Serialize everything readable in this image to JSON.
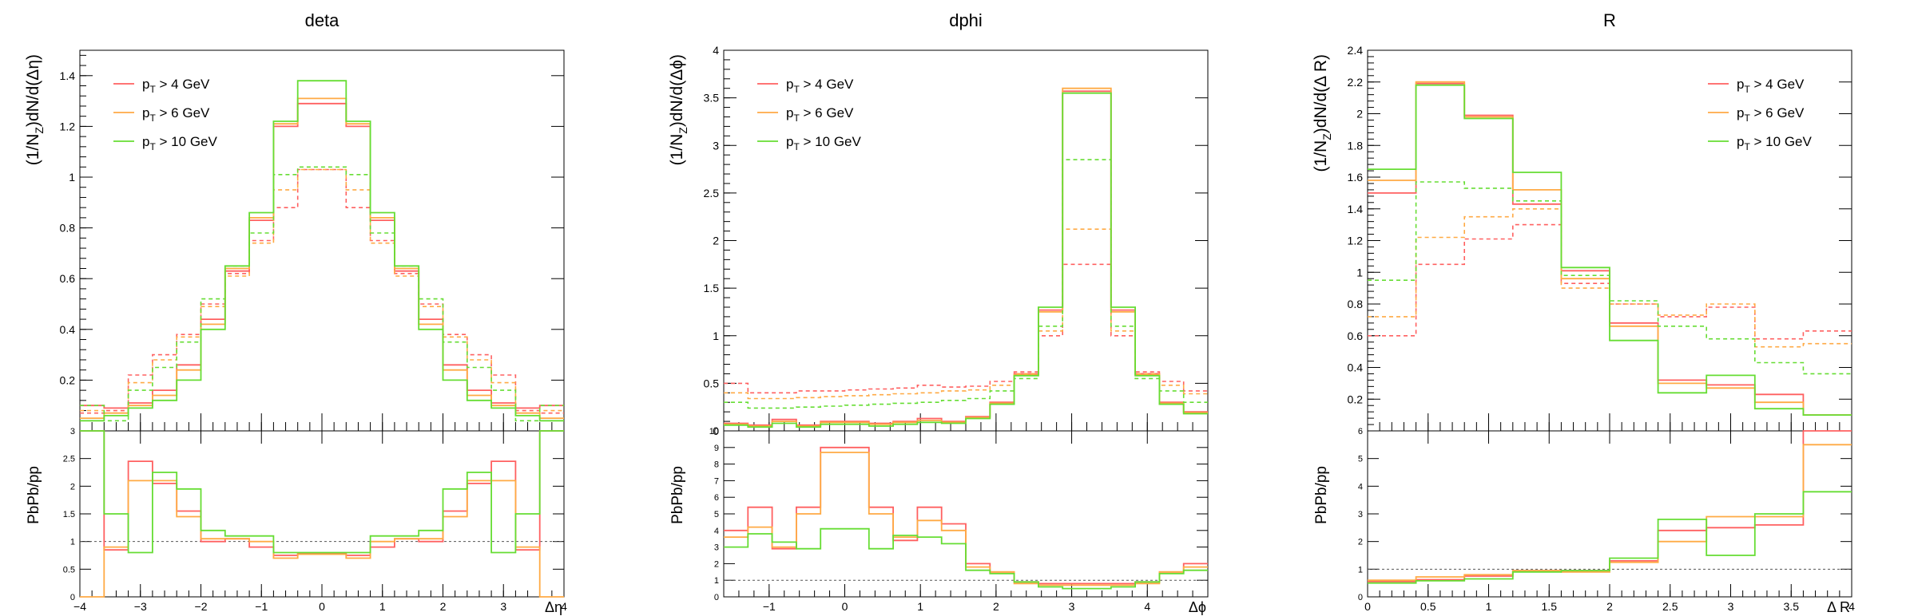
{
  "colors": {
    "pt4": "#ff6060",
    "pt6": "#ffaa44",
    "pt10": "#66dd33",
    "axis": "#000000",
    "ref": "#555555"
  },
  "chart_data": [
    {
      "type": "line",
      "title": "deta",
      "xlabel": "Δη",
      "ylabel": "(1/N_Z)dN/d(Δη)",
      "ratio_ylabel": "PbPb/pp",
      "xlim": [
        -4,
        4
      ],
      "ylim": [
        0,
        1.5
      ],
      "ratio_ylim": [
        0,
        3
      ],
      "xticks": [
        -4,
        -3,
        -2,
        -1,
        0,
        1,
        2,
        3,
        4
      ],
      "xtick_labels": [
        "−4",
        "−3",
        "−2",
        "−1",
        "0",
        "1",
        "2",
        "3",
        "4"
      ],
      "yticks": [
        0.2,
        0.4,
        0.6,
        0.8,
        1,
        1.2,
        1.4
      ],
      "ytick_labels": [
        "0.2",
        "0.4",
        "0.6",
        "0.8",
        "1",
        "1.2",
        "1.4"
      ],
      "ratio_yticks": [
        0,
        0.5,
        1,
        1.5,
        2,
        2.5,
        3
      ],
      "ratio_ytick_labels": [
        "0",
        "0.5",
        "1",
        "1.5",
        "2",
        "2.5",
        "3"
      ],
      "legend_pos": "top-left",
      "bin_edges": [
        -4.0,
        -3.6,
        -3.2,
        -2.8,
        -2.4,
        -2.0,
        -1.6,
        -1.2,
        -0.8,
        -0.4,
        0.0,
        0.4,
        0.8,
        1.2,
        1.6,
        2.0,
        2.4,
        2.8,
        3.2,
        3.6,
        4.0
      ],
      "series": [
        {
          "name": "p_T > 4 GeV",
          "name_main": "p",
          "name_sub": "T",
          "name_rest": " > 4 GeV",
          "color_key": "pt4",
          "pbpb": [
            0.1,
            0.09,
            0.11,
            0.16,
            0.26,
            0.44,
            0.63,
            0.83,
            1.2,
            1.29,
            1.29,
            1.2,
            0.83,
            0.63,
            0.44,
            0.26,
            0.16,
            0.11,
            0.09,
            0.1
          ],
          "pp": [
            0.07,
            0.08,
            0.22,
            0.3,
            0.38,
            0.5,
            0.62,
            0.75,
            0.88,
            1.03,
            1.03,
            0.88,
            0.75,
            0.62,
            0.5,
            0.38,
            0.3,
            0.22,
            0.08,
            0.07
          ],
          "ratio": [
            3.0,
            0.85,
            2.45,
            2.05,
            1.55,
            1.0,
            1.05,
            0.9,
            0.75,
            0.78,
            0.78,
            0.75,
            0.9,
            1.05,
            1.0,
            1.55,
            2.05,
            2.45,
            0.85,
            3.0
          ]
        },
        {
          "name": "p_T > 6 GeV",
          "name_main": "p",
          "name_sub": "T",
          "name_rest": " > 6 GeV",
          "color_key": "pt6",
          "pbpb": [
            0.05,
            0.07,
            0.1,
            0.14,
            0.24,
            0.42,
            0.64,
            0.84,
            1.21,
            1.31,
            1.31,
            1.21,
            0.84,
            0.64,
            0.42,
            0.24,
            0.14,
            0.1,
            0.07,
            0.05
          ],
          "pp": [
            0.08,
            0.07,
            0.19,
            0.28,
            0.37,
            0.49,
            0.61,
            0.74,
            0.95,
            1.03,
            1.03,
            0.95,
            0.74,
            0.61,
            0.49,
            0.37,
            0.28,
            0.19,
            0.07,
            0.08
          ],
          "ratio": [
            0.0,
            0.9,
            2.1,
            2.1,
            1.45,
            1.05,
            1.05,
            1.0,
            0.7,
            0.77,
            0.77,
            0.7,
            1.0,
            1.05,
            1.05,
            1.45,
            2.1,
            2.1,
            0.9,
            0.0
          ]
        },
        {
          "name": "p_T > 10 GeV",
          "name_main": "p",
          "name_sub": "T",
          "name_rest": " > 10 GeV",
          "color_key": "pt10",
          "pbpb": [
            0.04,
            0.06,
            0.09,
            0.12,
            0.2,
            0.4,
            0.65,
            0.86,
            1.22,
            1.38,
            1.38,
            1.22,
            0.86,
            0.65,
            0.4,
            0.2,
            0.12,
            0.09,
            0.06,
            0.04
          ],
          "pp": [
            0.1,
            0.04,
            0.16,
            0.25,
            0.35,
            0.52,
            0.65,
            0.78,
            1.01,
            1.04,
            1.04,
            1.01,
            0.78,
            0.65,
            0.52,
            0.35,
            0.25,
            0.16,
            0.04,
            0.1
          ],
          "ratio": [
            3.0,
            1.5,
            0.8,
            2.25,
            1.95,
            1.2,
            1.1,
            1.1,
            0.8,
            0.8,
            0.8,
            0.8,
            1.1,
            1.1,
            1.2,
            1.95,
            2.25,
            0.8,
            1.5,
            3.0
          ]
        }
      ]
    },
    {
      "type": "line",
      "title": "dphi",
      "xlabel": "Δϕ",
      "ylabel": "(1/N_Z)dN/d(Δϕ)",
      "ratio_ylabel": "PbPb/pp",
      "xlim": [
        -1.6,
        4.8
      ],
      "ylim": [
        0,
        4
      ],
      "ratio_ylim": [
        0,
        10
      ],
      "xticks": [
        -1,
        0,
        1,
        2,
        3,
        4
      ],
      "xtick_labels": [
        "−1",
        "0",
        "1",
        "2",
        "3",
        "4"
      ],
      "yticks": [
        0,
        0.5,
        1,
        1.5,
        2,
        2.5,
        3,
        3.5,
        4
      ],
      "ytick_labels": [
        "0",
        "0.5",
        "1",
        "1.5",
        "2",
        "2.5",
        "3",
        "3.5",
        "4"
      ],
      "ratio_yticks": [
        0,
        1,
        2,
        3,
        4,
        5,
        6,
        7,
        8,
        9,
        10
      ],
      "ratio_ytick_labels": [
        "0",
        "1",
        "2",
        "3",
        "4",
        "5",
        "6",
        "7",
        "8",
        "9",
        "10"
      ],
      "legend_pos": "top-left",
      "bin_edges": [
        -1.6,
        -1.28,
        -0.96,
        -0.64,
        -0.32,
        0.0,
        0.32,
        0.64,
        0.96,
        1.28,
        1.6,
        1.92,
        2.24,
        2.56,
        2.88,
        3.2,
        3.52,
        3.84,
        4.16,
        4.48,
        4.8
      ],
      "series": [
        {
          "name": "p_T > 4 GeV",
          "name_main": "p",
          "name_sub": "T",
          "name_rest": " > 4 GeV",
          "color_key": "pt4",
          "pbpb": [
            0.08,
            0.06,
            0.12,
            0.06,
            0.1,
            0.1,
            0.08,
            0.1,
            0.13,
            0.1,
            0.15,
            0.3,
            0.6,
            1.27,
            3.57,
            3.57,
            1.27,
            0.6,
            0.3,
            0.2
          ],
          "pp": [
            0.5,
            0.4,
            0.4,
            0.42,
            0.42,
            0.43,
            0.44,
            0.45,
            0.48,
            0.46,
            0.47,
            0.52,
            0.62,
            1.0,
            1.75,
            1.75,
            1.0,
            0.62,
            0.52,
            0.42
          ],
          "ratio": [
            4.0,
            5.4,
            2.9,
            5.4,
            9.0,
            9.0,
            5.4,
            3.4,
            5.4,
            4.4,
            2.0,
            1.5,
            0.9,
            0.8,
            0.8,
            0.8,
            0.8,
            0.9,
            1.5,
            2.0
          ]
        },
        {
          "name": "p_T > 6 GeV",
          "name_main": "p",
          "name_sub": "T",
          "name_rest": " > 6 GeV",
          "color_key": "pt6",
          "pbpb": [
            0.07,
            0.05,
            0.1,
            0.05,
            0.09,
            0.09,
            0.07,
            0.09,
            0.11,
            0.09,
            0.14,
            0.29,
            0.59,
            1.25,
            3.6,
            3.6,
            1.25,
            0.59,
            0.29,
            0.19
          ],
          "pp": [
            0.4,
            0.34,
            0.34,
            0.35,
            0.36,
            0.37,
            0.38,
            0.39,
            0.4,
            0.42,
            0.43,
            0.48,
            0.6,
            1.05,
            2.12,
            2.12,
            1.05,
            0.6,
            0.48,
            0.39
          ],
          "ratio": [
            3.6,
            4.2,
            3.0,
            5.0,
            8.7,
            8.7,
            5.0,
            3.6,
            4.6,
            4.0,
            1.8,
            1.5,
            0.8,
            0.7,
            0.7,
            0.7,
            0.7,
            0.8,
            1.5,
            1.8
          ]
        },
        {
          "name": "p_T > 10 GeV",
          "name_main": "p",
          "name_sub": "T",
          "name_rest": " > 10 GeV",
          "color_key": "pt10",
          "pbpb": [
            0.06,
            0.04,
            0.08,
            0.04,
            0.07,
            0.07,
            0.05,
            0.07,
            0.09,
            0.08,
            0.13,
            0.28,
            0.58,
            1.3,
            3.55,
            3.55,
            1.3,
            0.58,
            0.28,
            0.18
          ],
          "pp": [
            0.3,
            0.24,
            0.24,
            0.25,
            0.26,
            0.27,
            0.28,
            0.29,
            0.3,
            0.32,
            0.34,
            0.42,
            0.55,
            1.1,
            2.85,
            2.85,
            1.1,
            0.55,
            0.42,
            0.3
          ],
          "ratio": [
            3.0,
            3.8,
            3.3,
            2.9,
            4.1,
            4.1,
            2.9,
            3.7,
            3.6,
            3.2,
            1.6,
            1.4,
            0.9,
            0.6,
            0.5,
            0.5,
            0.6,
            0.9,
            1.4,
            1.6
          ]
        }
      ]
    },
    {
      "type": "line",
      "title": "R",
      "xlabel": "Δ R",
      "ylabel": "(1/N_Z)dN/d(Δ R)",
      "ratio_ylabel": "PbPb/pp",
      "xlim": [
        0,
        4
      ],
      "ylim": [
        0,
        2.4
      ],
      "ratio_ylim": [
        0,
        6
      ],
      "xticks": [
        0,
        0.5,
        1,
        1.5,
        2,
        2.5,
        3,
        3.5,
        4
      ],
      "xtick_labels": [
        "0",
        "0.5",
        "1",
        "1.5",
        "2",
        "2.5",
        "3",
        "3.5",
        "4"
      ],
      "yticks": [
        0.2,
        0.4,
        0.6,
        0.8,
        1,
        1.2,
        1.4,
        1.6,
        1.8,
        2,
        2.2,
        2.4
      ],
      "ytick_labels": [
        "0.2",
        "0.4",
        "0.6",
        "0.8",
        "1",
        "1.2",
        "1.4",
        "1.6",
        "1.8",
        "2",
        "2.2",
        "2.4"
      ],
      "ratio_yticks": [
        0,
        1,
        2,
        3,
        4,
        5,
        6
      ],
      "ratio_ytick_labels": [
        "0",
        "1",
        "2",
        "3",
        "4",
        "5",
        "6"
      ],
      "legend_pos": "top-right",
      "bin_edges": [
        0.0,
        0.4,
        0.8,
        1.2,
        1.6,
        2.0,
        2.4,
        2.8,
        3.2,
        3.6,
        4.0
      ],
      "series": [
        {
          "name": "p_T > 4 GeV",
          "name_main": "p",
          "name_sub": "T",
          "name_rest": " > 4 GeV",
          "color_key": "pt4",
          "pbpb": [
            1.5,
            2.19,
            1.99,
            1.43,
            1.01,
            0.68,
            0.32,
            0.29,
            0.23,
            0.1
          ],
          "pp": [
            0.6,
            1.05,
            1.21,
            1.3,
            0.93,
            0.8,
            0.72,
            0.78,
            0.58,
            0.63
          ],
          "ratio": [
            0.55,
            0.62,
            0.75,
            0.95,
            0.95,
            1.3,
            2.4,
            2.5,
            2.6,
            6.0
          ]
        },
        {
          "name": "p_T > 6 GeV",
          "name_main": "p",
          "name_sub": "T",
          "name_rest": " > 6 GeV",
          "color_key": "pt6",
          "pbpb": [
            1.58,
            2.2,
            1.98,
            1.52,
            0.96,
            0.66,
            0.3,
            0.27,
            0.18,
            0.1
          ],
          "pp": [
            0.72,
            1.22,
            1.35,
            1.4,
            0.9,
            0.8,
            0.73,
            0.8,
            0.53,
            0.55
          ],
          "ratio": [
            0.6,
            0.72,
            0.8,
            0.95,
            0.9,
            1.25,
            2.0,
            2.9,
            2.9,
            5.5
          ]
        },
        {
          "name": "p_T > 10 GeV",
          "name_main": "p",
          "name_sub": "T",
          "name_rest": " > 10 GeV",
          "color_key": "pt10",
          "pbpb": [
            1.65,
            2.18,
            1.97,
            1.63,
            1.03,
            0.57,
            0.24,
            0.35,
            0.14,
            0.1
          ],
          "pp": [
            0.95,
            1.57,
            1.53,
            1.45,
            0.98,
            0.82,
            0.66,
            0.58,
            0.43,
            0.36
          ],
          "ratio": [
            0.5,
            0.58,
            0.65,
            0.9,
            0.95,
            1.4,
            2.8,
            1.5,
            3.0,
            3.8
          ]
        }
      ]
    }
  ]
}
